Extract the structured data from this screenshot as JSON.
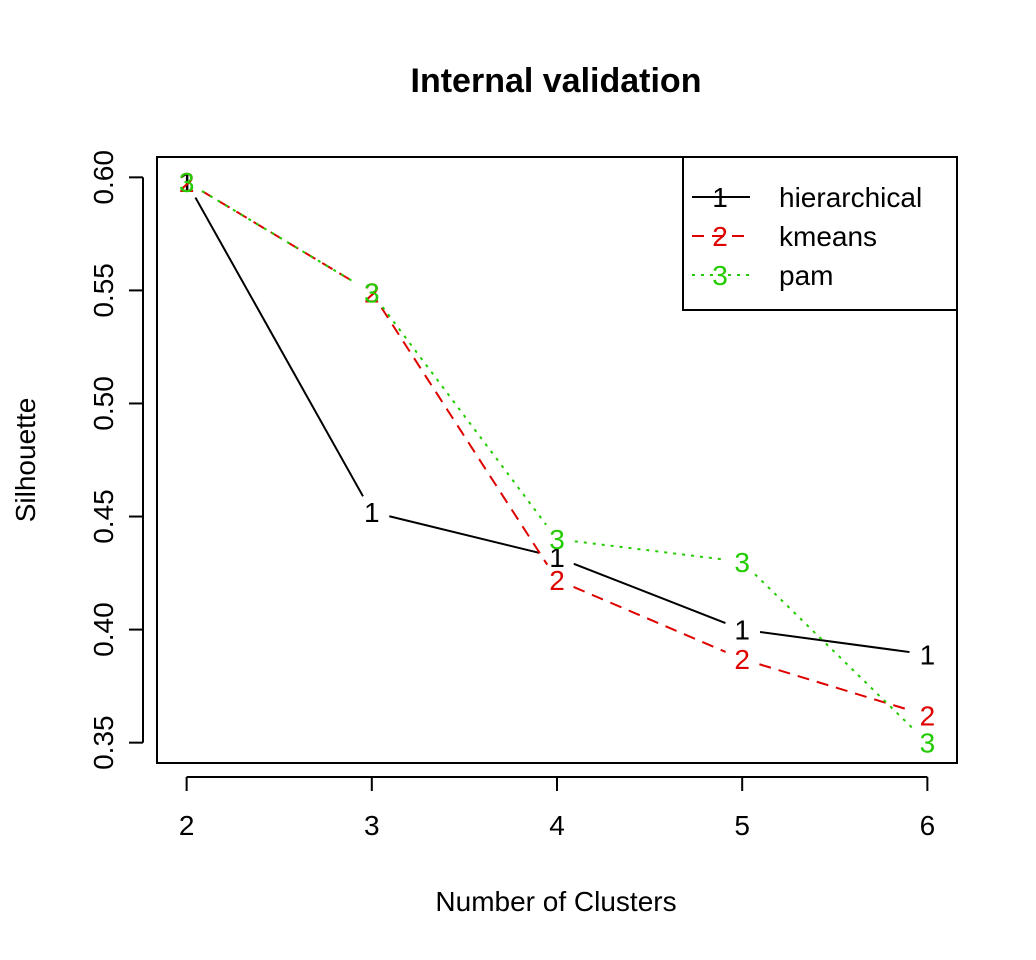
{
  "chart_data": {
    "type": "line",
    "title": "Internal validation",
    "xlabel": "Number of Clusters",
    "ylabel": "Silhouette",
    "x": [
      2,
      3,
      4,
      5,
      6
    ],
    "xticks": [
      "2",
      "3",
      "4",
      "5",
      "6"
    ],
    "yticks": [
      "0.35",
      "0.40",
      "0.45",
      "0.50",
      "0.55",
      "0.60"
    ],
    "xlim": [
      1.84,
      6.16
    ],
    "ylim": [
      0.341,
      0.609
    ],
    "grid": false,
    "legend_position": "top-right",
    "series": [
      {
        "name": "hierarchical",
        "marker": "1",
        "color": "#000000",
        "dash": "solid",
        "values": [
          0.598,
          0.452,
          0.432,
          0.4,
          0.389
        ]
      },
      {
        "name": "kmeans",
        "marker": "2",
        "color": "#DF0000",
        "dash": "dashed",
        "values": [
          0.598,
          0.549,
          0.422,
          0.387,
          0.362
        ]
      },
      {
        "name": "pam",
        "marker": "3",
        "color": "#22CC00",
        "dash": "dotted",
        "values": [
          0.598,
          0.549,
          0.44,
          0.43,
          0.35
        ]
      }
    ]
  }
}
